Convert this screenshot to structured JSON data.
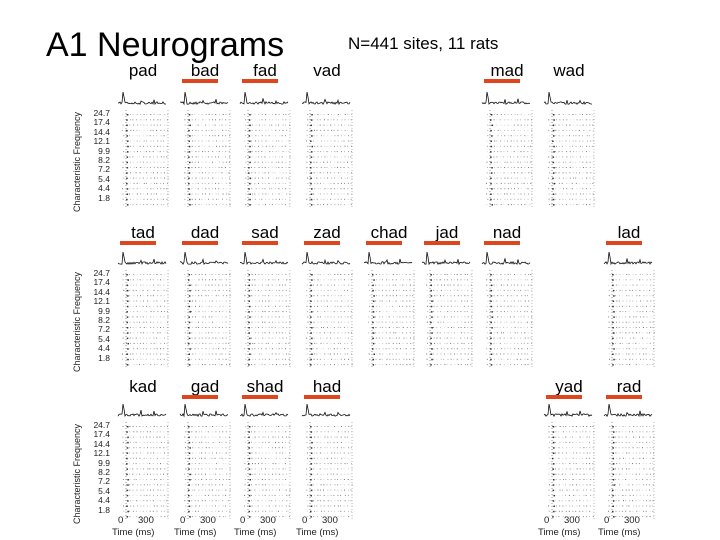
{
  "title": "A1 Neurograms",
  "subtitle": "N=441 sites, 11 rats",
  "y_axis_label": "Characteristic Frequency",
  "y_ticks": [
    "24.7",
    "17.4",
    "14.4",
    "12.1",
    "9.9",
    "8.2",
    "7.2",
    "5.4",
    "4.4",
    "1.8"
  ],
  "x_ticks": {
    "start": "0",
    "end": "300"
  },
  "x_axis_label": "Time (ms)",
  "accent_color": "#e0461e",
  "rows": [
    {
      "words": [
        {
          "col": 0,
          "label": "pad",
          "underlined": false
        },
        {
          "col": 1,
          "label": "bad",
          "underlined": true
        },
        {
          "col": 2,
          "label": "fad",
          "underlined": true
        },
        {
          "col": 3,
          "label": "vad",
          "underlined": false
        },
        {
          "col": 6,
          "label": "mad",
          "underlined": true
        },
        {
          "col": 7,
          "label": "wad",
          "underlined": false
        }
      ]
    },
    {
      "words": [
        {
          "col": 0,
          "label": "tad",
          "underlined": true
        },
        {
          "col": 1,
          "label": "dad",
          "underlined": true
        },
        {
          "col": 2,
          "label": "sad",
          "underlined": true
        },
        {
          "col": 3,
          "label": "zad",
          "underlined": true
        },
        {
          "col": 4,
          "label": "chad",
          "underlined": true
        },
        {
          "col": 5,
          "label": "jad",
          "underlined": true
        },
        {
          "col": 6,
          "label": "nad",
          "underlined": true
        },
        {
          "col": 8,
          "label": "lad",
          "underlined": true
        }
      ]
    },
    {
      "words": [
        {
          "col": 0,
          "label": "kad",
          "underlined": false
        },
        {
          "col": 1,
          "label": "gad",
          "underlined": true
        },
        {
          "col": 2,
          "label": "shad",
          "underlined": true
        },
        {
          "col": 3,
          "label": "had",
          "underlined": true
        },
        {
          "col": 7,
          "label": "yad",
          "underlined": true
        },
        {
          "col": 8,
          "label": "rad",
          "underlined": true
        }
      ]
    }
  ]
}
